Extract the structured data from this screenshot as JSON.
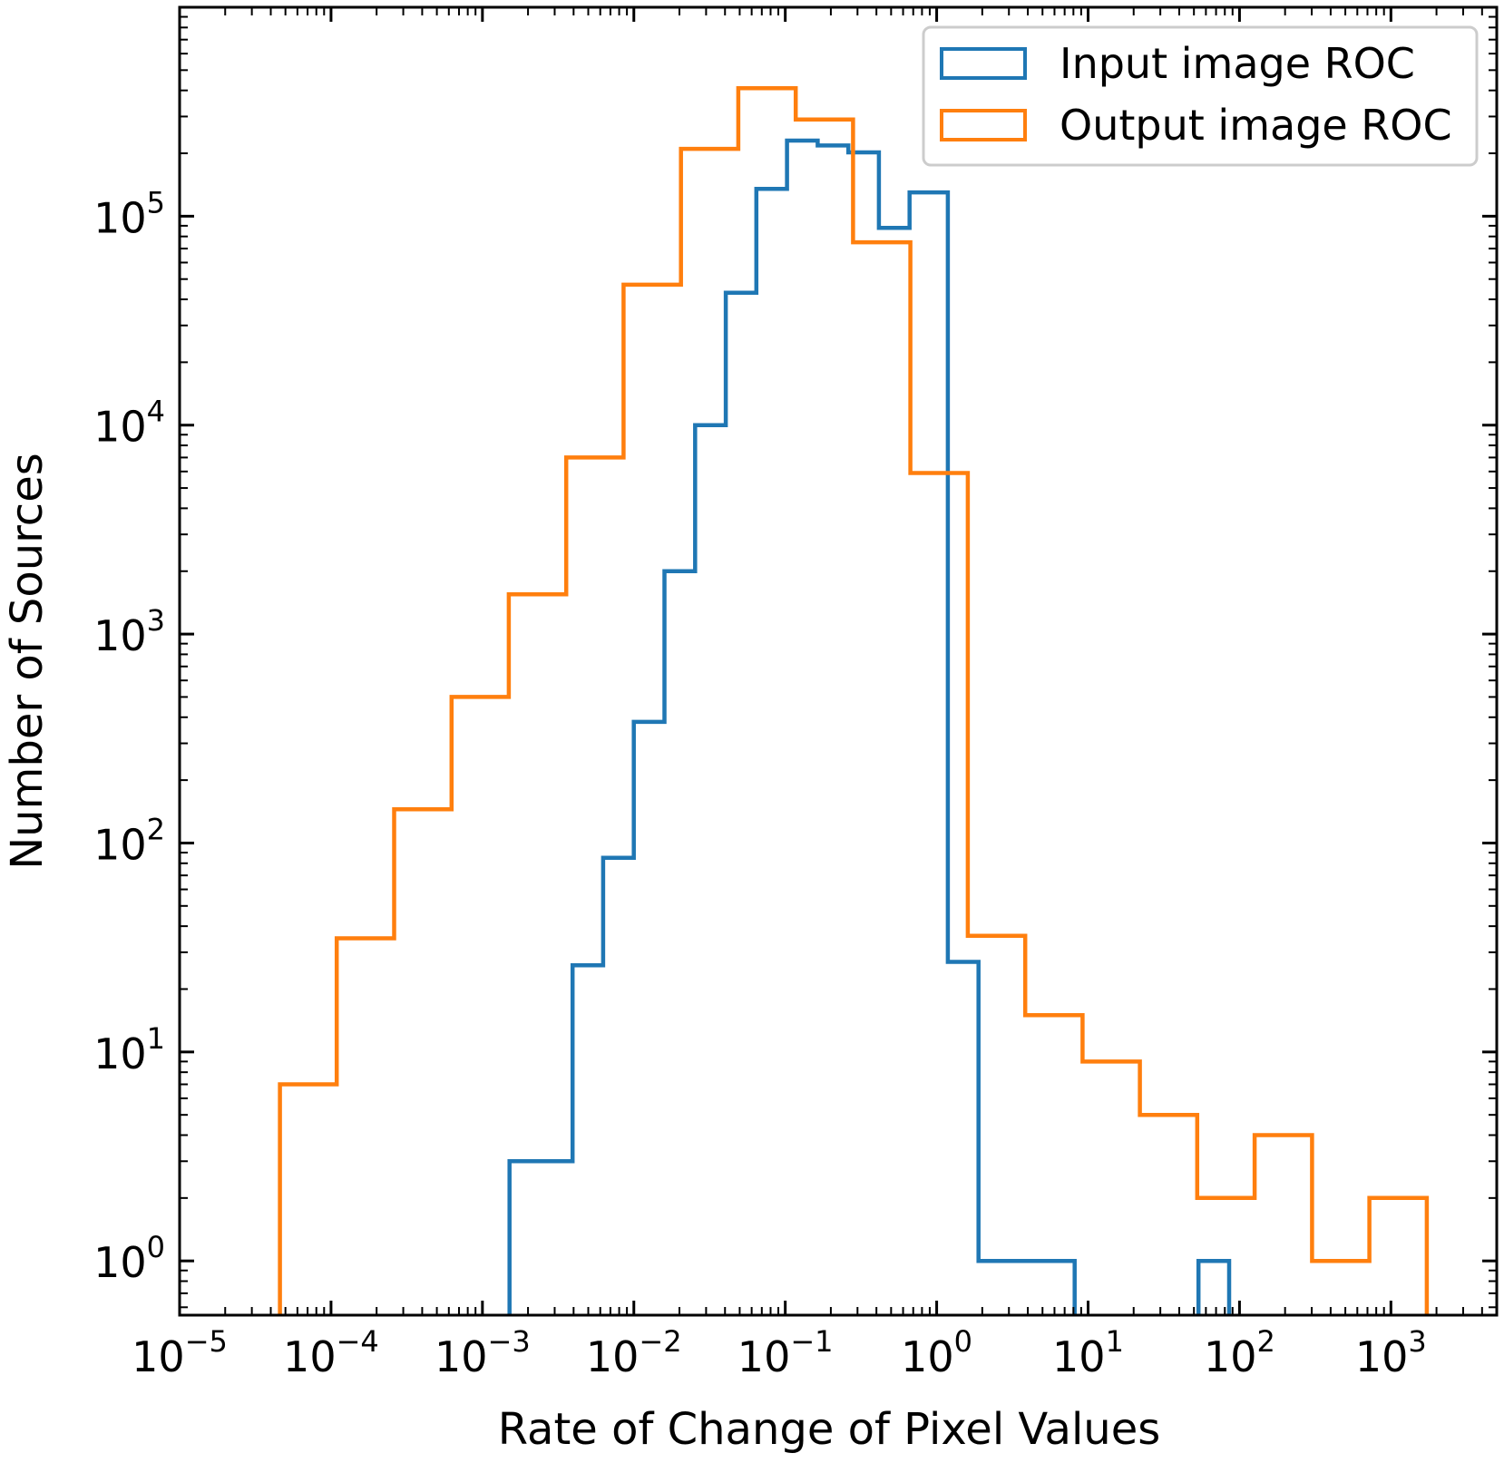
{
  "chart_data": {
    "type": "histogram-step",
    "xlabel": "Rate of Change of Pixel Values",
    "ylabel": "Number of Sources",
    "x_scale": "log",
    "y_scale": "log",
    "xlim": [
      1e-05,
      5000
    ],
    "ylim": [
      0.55,
      1000000
    ],
    "x_ticks": [
      {
        "base": "10",
        "exp": "−5",
        "value": 1e-05
      },
      {
        "base": "10",
        "exp": "−4",
        "value": 0.0001
      },
      {
        "base": "10",
        "exp": "−3",
        "value": 0.001
      },
      {
        "base": "10",
        "exp": "−2",
        "value": 0.01
      },
      {
        "base": "10",
        "exp": "−1",
        "value": 0.1
      },
      {
        "base": "10",
        "exp": "0",
        "value": 1
      },
      {
        "base": "10",
        "exp": "1",
        "value": 10
      },
      {
        "base": "10",
        "exp": "2",
        "value": 100
      },
      {
        "base": "10",
        "exp": "3",
        "value": 1000
      }
    ],
    "y_ticks": [
      {
        "base": "10",
        "exp": "0",
        "value": 1
      },
      {
        "base": "10",
        "exp": "1",
        "value": 10
      },
      {
        "base": "10",
        "exp": "2",
        "value": 100
      },
      {
        "base": "10",
        "exp": "3",
        "value": 1000
      },
      {
        "base": "10",
        "exp": "4",
        "value": 10000
      },
      {
        "base": "10",
        "exp": "5",
        "value": 100000
      }
    ],
    "legend": {
      "position": "top-right"
    },
    "series": [
      {
        "name": "Input image ROC",
        "color": "#1f77b4",
        "bin_edges": [
          0.00151,
          0.00394,
          0.00627,
          0.00999,
          0.01593,
          0.02538,
          0.04045,
          0.06446,
          0.1027,
          0.1637,
          0.2609,
          0.4157,
          0.6625,
          1.186,
          1.89,
          8.15,
          53.6,
          85.4
        ],
        "counts": [
          3,
          26,
          85,
          380,
          2000,
          10000,
          43000,
          135000,
          230000,
          218000,
          202000,
          88000,
          130000,
          27,
          1,
          0,
          1
        ]
      },
      {
        "name": "Output image ROC",
        "color": "#ff7f0e",
        "bin_edges": [
          4.6e-05,
          0.000109,
          0.000261,
          0.000625,
          0.001494,
          0.003575,
          0.008554,
          0.02047,
          0.04897,
          0.1172,
          0.2803,
          0.6708,
          1.605,
          3.842,
          9.19,
          21.99,
          52.6,
          125.9,
          301.3,
          721,
          1725
        ],
        "counts": [
          7,
          35,
          145,
          500,
          1550,
          7000,
          47000,
          210000,
          410000,
          290000,
          75000,
          5900,
          36,
          15,
          9,
          5,
          2,
          4,
          1,
          2
        ]
      }
    ]
  }
}
